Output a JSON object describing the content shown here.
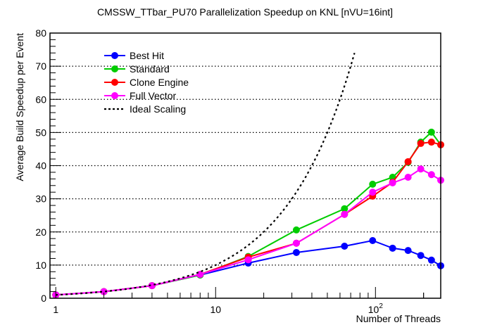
{
  "chart_data": {
    "type": "line",
    "title": "CMSSW_TTbar_PU70 Parallelization Speedup on KNL [nVU=16int]",
    "xlabel": "Number of Threads",
    "ylabel": "Average Build Speedup per Event",
    "xscale": "log",
    "xlim": [
      0.92,
      256
    ],
    "ylim": [
      0,
      80
    ],
    "grid": "horizontal-dotted",
    "legend_position": "top-left",
    "x_ticks": [
      {
        "value": 1,
        "label": "1",
        "sup": ""
      },
      {
        "value": 10,
        "label": "10",
        "sup": ""
      },
      {
        "value": 100,
        "label": "10",
        "sup": "2"
      }
    ],
    "y_ticks": [
      0,
      10,
      20,
      30,
      40,
      50,
      60,
      70,
      80
    ],
    "x": [
      1,
      2,
      4,
      8,
      16,
      32,
      64,
      96,
      128,
      160,
      192,
      224,
      256
    ],
    "series": [
      {
        "name": "Best Hit",
        "color": "#0000ff",
        "marker": "circle",
        "values": [
          1.0,
          2.0,
          3.8,
          7.0,
          10.6,
          13.8,
          15.7,
          17.4,
          15.1,
          14.4,
          12.9,
          11.5,
          9.8
        ]
      },
      {
        "name": "Standard",
        "color": "#00cc00",
        "marker": "circle",
        "values": [
          1.0,
          2.0,
          3.8,
          7.0,
          12.6,
          20.6,
          27.0,
          34.4,
          36.5,
          41.0,
          47.1,
          50.1,
          46.3
        ]
      },
      {
        "name": "Clone Engine",
        "color": "#ff0000",
        "marker": "circle",
        "values": [
          1.0,
          2.0,
          3.8,
          7.2,
          12.4,
          16.6,
          25.3,
          30.8,
          35.0,
          41.2,
          46.7,
          47.1,
          46.3
        ]
      },
      {
        "name": "Full Vector",
        "color": "#ff00ff",
        "marker": "circle",
        "values": [
          1.0,
          2.0,
          3.8,
          7.2,
          11.6,
          16.6,
          25.3,
          32.0,
          34.8,
          36.5,
          39.0,
          37.3,
          35.6
        ]
      },
      {
        "name": "Ideal Scaling",
        "color": "#000000",
        "marker": "none",
        "style": "dotted",
        "x": [
          1,
          74
        ],
        "values": [
          1,
          74
        ]
      }
    ]
  }
}
